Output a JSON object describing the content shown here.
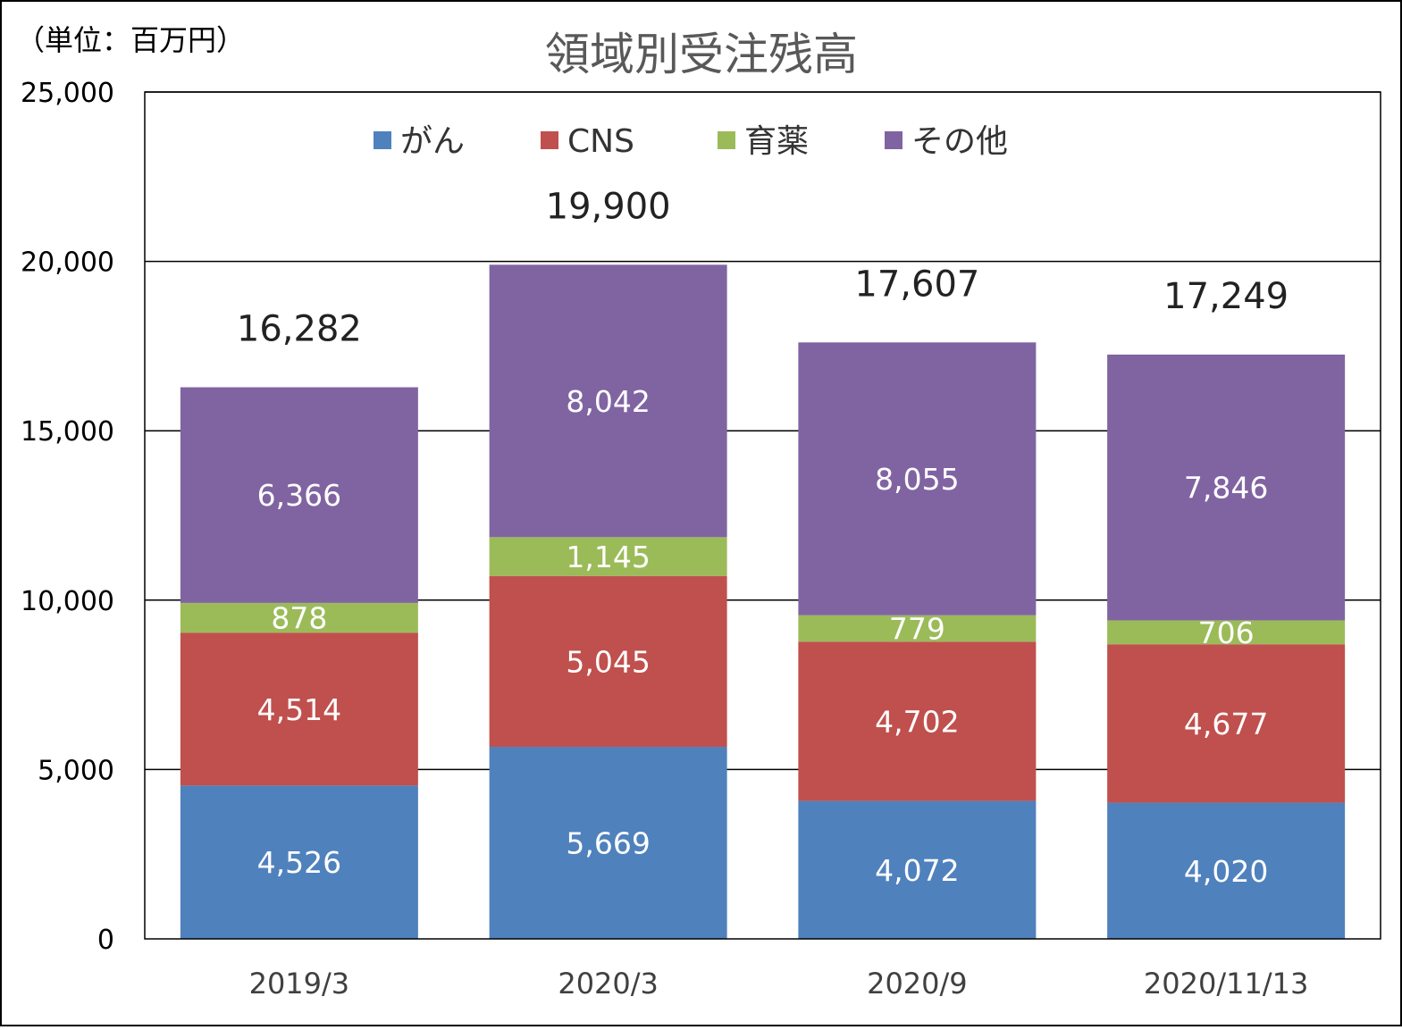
{
  "chart_data": {
    "type": "bar",
    "stacked": true,
    "title": "領域別受注残高",
    "unit_note": "（単位：百万円）",
    "categories": [
      "2019/3",
      "2020/3",
      "2020/9",
      "2020/11/13"
    ],
    "series": [
      {
        "name": "がん",
        "color": "#4F81BD",
        "values": [
          4526,
          5669,
          4072,
          4020
        ],
        "labels": [
          "4,526",
          "5,669",
          "4,072",
          "4,020"
        ]
      },
      {
        "name": "CNS",
        "color": "#C0504D",
        "values": [
          4514,
          5045,
          4702,
          4677
        ],
        "labels": [
          "4,514",
          "5,045",
          "4,702",
          "4,677"
        ]
      },
      {
        "name": "育薬",
        "color": "#9BBB59",
        "values": [
          878,
          1145,
          779,
          706
        ],
        "labels": [
          "878",
          "1,145",
          "779",
          "706"
        ]
      },
      {
        "name": "その他",
        "color": "#8064A2",
        "values": [
          6366,
          8042,
          8055,
          7846
        ],
        "labels": [
          "6,366",
          "8,042",
          "8,055",
          "7,846"
        ]
      }
    ],
    "totals": [
      16282,
      19900,
      17607,
      17249
    ],
    "total_labels": [
      "16,282",
      "19,900",
      "17,607",
      "17,249"
    ],
    "ylim": [
      0,
      25000
    ],
    "y_ticks": [
      0,
      5000,
      10000,
      15000,
      20000,
      25000
    ],
    "y_tick_labels": [
      "0",
      "5,000",
      "10,000",
      "15,000",
      "20,000",
      "25,000"
    ],
    "grid": true,
    "legend_position": "top-center"
  }
}
